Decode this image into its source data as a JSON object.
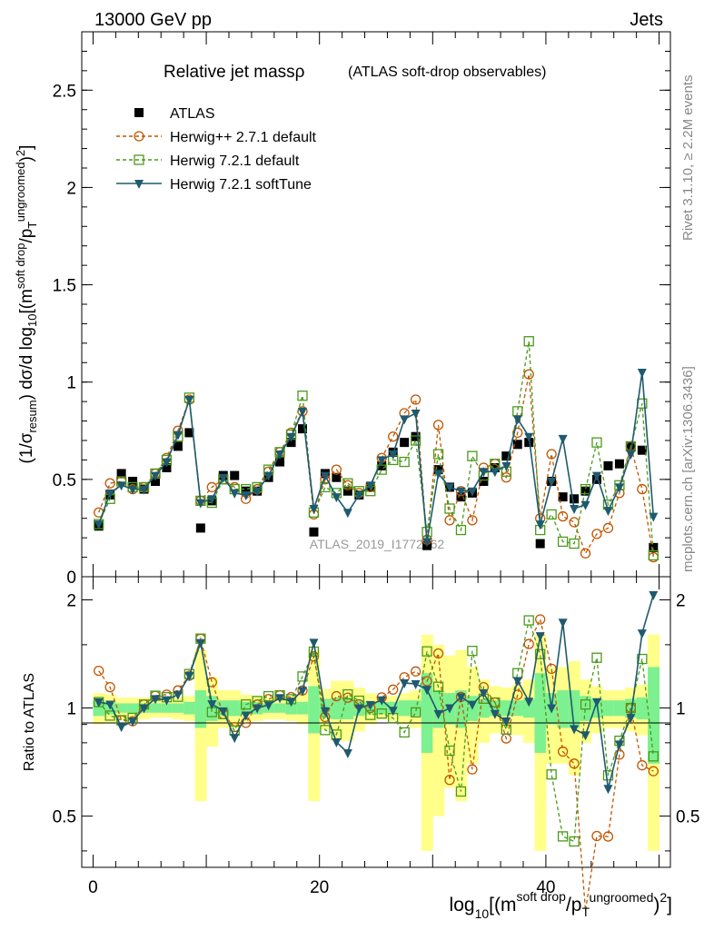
{
  "header": {
    "left": "13000 GeV pp",
    "right": "Jets"
  },
  "side_labels": {
    "rivet": "Rivet 3.1.10, ≥ 2.2M events",
    "mcplots": "mcplots.cern.ch [arXiv:1306.3436]"
  },
  "watermark": "ATLAS_2019_I1772062",
  "chart_data": [
    {
      "type": "line",
      "title": "Relative jet massρ",
      "subtitle": "(ATLAS soft-drop observables)",
      "ylabel": "(1/σresum) dσ/d log10[(m^soft drop/pT^ungroomed)²]",
      "xlabel": "log10[(m^soft drop/pT^ungroomed)²]",
      "xlim": [
        -1,
        51
      ],
      "ylim": [
        0,
        2.8
      ],
      "yticks": [
        0,
        0.5,
        1,
        1.5,
        2,
        2.5
      ],
      "ytick_labels": [
        "0",
        "0.5",
        "1",
        "1.5",
        "2",
        "2.5"
      ],
      "xticks": [
        0,
        20,
        40
      ],
      "xtick_labels": [
        "0",
        "20",
        "40"
      ],
      "legend_position": "top-left",
      "legend": [
        "ATLAS",
        "Herwig++ 2.7.1 default",
        "Herwig 7.2.1 default",
        "Herwig 7.2.1 softTune"
      ],
      "x": [
        0.5,
        1.5,
        2.5,
        3.5,
        4.5,
        5.5,
        6.5,
        7.5,
        8.5,
        9.5,
        10.5,
        11.5,
        12.5,
        13.5,
        14.5,
        15.5,
        16.5,
        17.5,
        18.5,
        19.5,
        20.5,
        21.5,
        22.5,
        23.5,
        24.5,
        25.5,
        26.5,
        27.5,
        28.5,
        29.5,
        30.5,
        31.5,
        32.5,
        33.5,
        34.5,
        35.5,
        36.5,
        37.5,
        38.5,
        39.5,
        40.5,
        41.5,
        42.5,
        43.5,
        44.5,
        45.5,
        46.5,
        47.5,
        48.5,
        49.5
      ],
      "series": [
        {
          "name": "ATLAS",
          "color": "#000000",
          "marker": "filled-square",
          "values": [
            0.26,
            0.42,
            0.53,
            0.49,
            0.45,
            0.49,
            0.56,
            0.67,
            0.74,
            0.25,
            0.39,
            0.52,
            0.52,
            0.44,
            0.44,
            0.51,
            0.59,
            0.69,
            0.76,
            0.23,
            0.53,
            0.51,
            0.44,
            0.42,
            0.46,
            0.57,
            0.64,
            0.69,
            0.72,
            0.16,
            0.55,
            0.46,
            0.41,
            0.43,
            0.49,
            0.56,
            0.62,
            0.68,
            0.69,
            0.17,
            0.49,
            0.41,
            0.4,
            0.44,
            0.5,
            0.57,
            0.58,
            0.67,
            0.65,
            0.15
          ]
        },
        {
          "name": "Herwig++ 2.7.1 default",
          "color": "#c05600",
          "marker": "open-circle",
          "dash": true,
          "values": [
            0.33,
            0.48,
            0.49,
            0.45,
            0.46,
            0.53,
            0.61,
            0.75,
            0.91,
            0.39,
            0.46,
            0.5,
            0.46,
            0.4,
            0.45,
            0.54,
            0.64,
            0.74,
            0.85,
            0.32,
            0.5,
            0.55,
            0.47,
            0.43,
            0.46,
            0.61,
            0.72,
            0.84,
            0.91,
            0.19,
            0.78,
            0.29,
            0.44,
            0.29,
            0.56,
            0.58,
            0.51,
            0.74,
            1.04,
            0.3,
            0.63,
            0.31,
            0.28,
            0.12,
            0.22,
            0.25,
            0.43,
            0.67,
            0.45,
            0.1
          ]
        },
        {
          "name": "Herwig 7.2.1 default",
          "color": "#4a9a1a",
          "marker": "open-square",
          "dash": true,
          "values": [
            0.27,
            0.4,
            0.49,
            0.46,
            0.46,
            0.53,
            0.6,
            0.72,
            0.92,
            0.39,
            0.38,
            0.5,
            0.45,
            0.45,
            0.46,
            0.55,
            0.64,
            0.73,
            0.93,
            0.33,
            0.46,
            0.43,
            0.48,
            0.44,
            0.44,
            0.55,
            0.6,
            0.59,
            0.7,
            0.23,
            0.63,
            0.35,
            0.24,
            0.62,
            0.52,
            0.58,
            0.54,
            0.85,
            1.21,
            0.24,
            0.32,
            0.18,
            0.17,
            0.45,
            0.69,
            0.37,
            0.47,
            0.67,
            0.89,
            0.11
          ]
        },
        {
          "name": "Herwig 7.2.1 softTune",
          "color": "#1f5a6e",
          "marker": "filled-triangle-down",
          "values": [
            0.27,
            0.43,
            0.47,
            0.45,
            0.45,
            0.52,
            0.59,
            0.73,
            0.91,
            0.38,
            0.4,
            0.51,
            0.43,
            0.42,
            0.44,
            0.52,
            0.63,
            0.72,
            0.85,
            0.35,
            0.52,
            0.41,
            0.33,
            0.42,
            0.47,
            0.6,
            0.63,
            0.81,
            0.84,
            0.18,
            0.53,
            0.46,
            0.44,
            0.44,
            0.54,
            0.54,
            0.57,
            0.81,
            0.72,
            0.27,
            0.49,
            0.71,
            0.35,
            0.37,
            0.52,
            0.34,
            0.46,
            0.63,
            1.05,
            0.31
          ]
        }
      ]
    },
    {
      "type": "line",
      "ylabel": "Ratio to ATLAS",
      "ylim": [
        0.36,
        2.32
      ],
      "yticks": [
        0.5,
        1,
        2
      ],
      "ytick_labels": [
        "0.5",
        "1",
        "2"
      ],
      "reference_line": 1,
      "band_colors": {
        "stat": "#7df08f",
        "total": "#ffff8a"
      },
      "total_band_halfwidth": [
        0.1,
        0.09,
        0.07,
        0.07,
        0.07,
        0.06,
        0.06,
        0.07,
        0.08,
        0.45,
        0.22,
        0.12,
        0.12,
        0.09,
        0.08,
        0.07,
        0.07,
        0.08,
        0.1,
        0.45,
        0.13,
        0.19,
        0.19,
        0.14,
        0.1,
        0.07,
        0.08,
        0.1,
        0.12,
        0.6,
        0.5,
        0.4,
        0.45,
        0.3,
        0.2,
        0.15,
        0.14,
        0.16,
        0.2,
        0.6,
        0.3,
        0.3,
        0.35,
        0.2,
        0.15,
        0.12,
        0.12,
        0.14,
        0.16,
        0.6
      ],
      "stat_band_halfwidth": [
        0.05,
        0.04,
        0.03,
        0.03,
        0.03,
        0.03,
        0.03,
        0.03,
        0.04,
        0.12,
        0.08,
        0.05,
        0.05,
        0.04,
        0.04,
        0.03,
        0.03,
        0.04,
        0.04,
        0.15,
        0.06,
        0.07,
        0.07,
        0.05,
        0.04,
        0.04,
        0.04,
        0.05,
        0.05,
        0.25,
        0.12,
        0.1,
        0.12,
        0.08,
        0.06,
        0.05,
        0.05,
        0.05,
        0.06,
        0.25,
        0.1,
        0.12,
        0.12,
        0.08,
        0.06,
        0.05,
        0.05,
        0.06,
        0.07,
        0.3
      ]
    }
  ]
}
